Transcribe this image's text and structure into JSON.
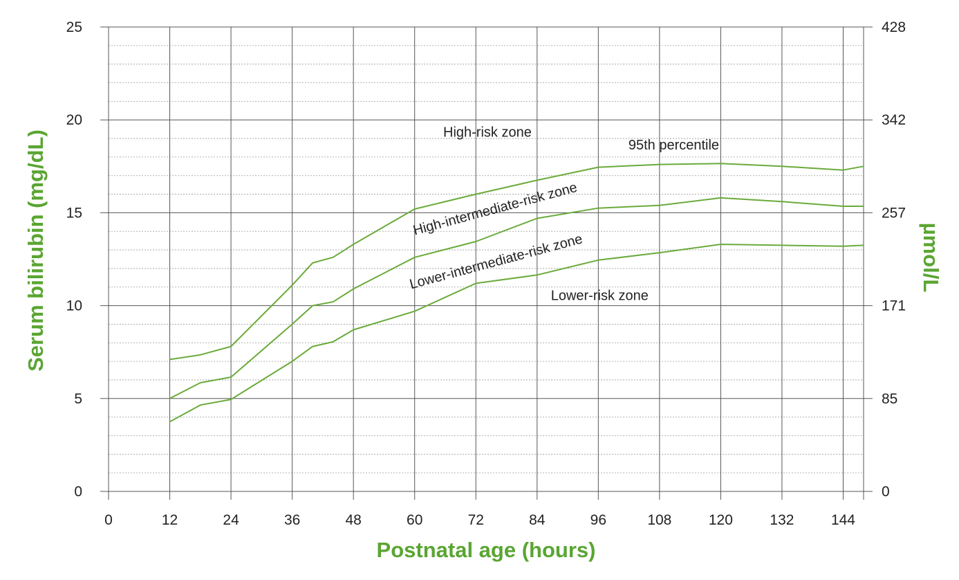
{
  "chart_data": {
    "type": "line",
    "xlabel": "Postnatal age (hours)",
    "ylabel": "Serum bilirubin (mg/dL)",
    "y2label": "µmol/L",
    "xlim": [
      0,
      148
    ],
    "ylim": [
      0,
      25
    ],
    "xticks": [
      0,
      12,
      24,
      36,
      48,
      60,
      72,
      84,
      96,
      108,
      120,
      132,
      144
    ],
    "yticks": [
      0,
      5,
      10,
      15,
      20,
      25
    ],
    "y2ticks": [
      {
        "value": 0,
        "label": "0"
      },
      {
        "value": 5,
        "label": "85"
      },
      {
        "value": 10,
        "label": "171"
      },
      {
        "value": 15,
        "label": "257"
      },
      {
        "value": 20,
        "label": "342"
      },
      {
        "value": 25,
        "label": "428"
      }
    ],
    "grid": true,
    "minor_grid_step": 1,
    "series": [
      {
        "name": "95th  percentile",
        "x": [
          12,
          18,
          24,
          36,
          40,
          44,
          48,
          60,
          72,
          84,
          96,
          108,
          120,
          132,
          144,
          148
        ],
        "y": [
          7.1,
          7.35,
          7.8,
          11.1,
          12.3,
          12.6,
          13.3,
          15.2,
          16.0,
          16.75,
          17.45,
          17.6,
          17.65,
          17.5,
          17.3,
          17.5
        ]
      },
      {
        "name": "",
        "x": [
          12,
          18,
          24,
          36,
          40,
          44,
          48,
          60,
          72,
          84,
          96,
          108,
          120,
          132,
          144,
          148
        ],
        "y": [
          5.0,
          5.85,
          6.15,
          9.0,
          10.0,
          10.2,
          10.9,
          12.6,
          13.45,
          14.7,
          15.25,
          15.4,
          15.8,
          15.6,
          15.35,
          15.35
        ]
      },
      {
        "name": "",
        "x": [
          12,
          18,
          24,
          36,
          40,
          44,
          48,
          60,
          72,
          84,
          96,
          108,
          120,
          132,
          144,
          148
        ],
        "y": [
          3.75,
          4.65,
          4.95,
          7.0,
          7.8,
          8.05,
          8.7,
          9.7,
          11.2,
          11.65,
          12.45,
          12.85,
          13.3,
          13.25,
          13.2,
          13.25
        ]
      }
    ],
    "annotations": [
      {
        "text": "High-risk zone",
        "x": 65.6,
        "y": 19.1,
        "angle": 0
      },
      {
        "text": "95th  percentile",
        "x": 101.9,
        "y": 18.4,
        "angle": 0
      },
      {
        "text": "High-intermediate-risk zone",
        "x": 60,
        "y": 13.8,
        "angle": -15
      },
      {
        "text": "Lower-intermediate-risk zone",
        "x": 59.3,
        "y": 10.9,
        "angle": -15
      },
      {
        "text": "Lower-risk zone",
        "x": 86.7,
        "y": 10.3,
        "angle": 0
      }
    ],
    "colors": {
      "line": "#6aaa3a",
      "title": "#5aa532",
      "major_grid": "#555555",
      "minor_grid": "#9a9a9a"
    }
  }
}
